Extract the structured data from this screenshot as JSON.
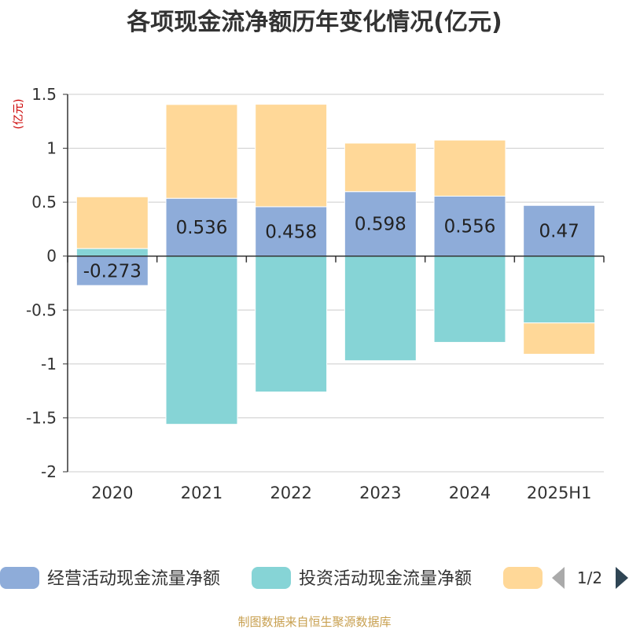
{
  "chart_data": {
    "type": "bar",
    "stacked": true,
    "title": "各项现金流净额历年变化情况(亿元)",
    "ylabel": "(亿元)",
    "categories": [
      "2020",
      "2021",
      "2022",
      "2023",
      "2024",
      "2025H1"
    ],
    "ylim": [
      -2,
      1.5
    ],
    "yticks": [
      "1.5",
      "1",
      "0.5",
      "0",
      "-0.5",
      "-1",
      "-1.5",
      "-2"
    ],
    "grid": true,
    "series": [
      {
        "name": "经营活动现金流量净额",
        "color": "#8eacd9",
        "values": [
          -0.273,
          0.536,
          0.458,
          0.598,
          0.556,
          0.47
        ],
        "labels": [
          "-0.273",
          "0.536",
          "0.458",
          "0.598",
          "0.556",
          "0.47"
        ]
      },
      {
        "name": "投资活动现金流量净额",
        "color": "#86d4d6",
        "values": [
          0.07,
          -1.56,
          -1.26,
          -0.97,
          -0.8,
          -0.62
        ]
      },
      {
        "name": "",
        "color": "#ffd898",
        "values": [
          0.48,
          0.87,
          0.95,
          0.45,
          0.52,
          -0.29
        ]
      }
    ],
    "legend": {
      "position": "bottom",
      "page": "1/2"
    }
  },
  "source": "制图数据来自恒生聚源数据库"
}
